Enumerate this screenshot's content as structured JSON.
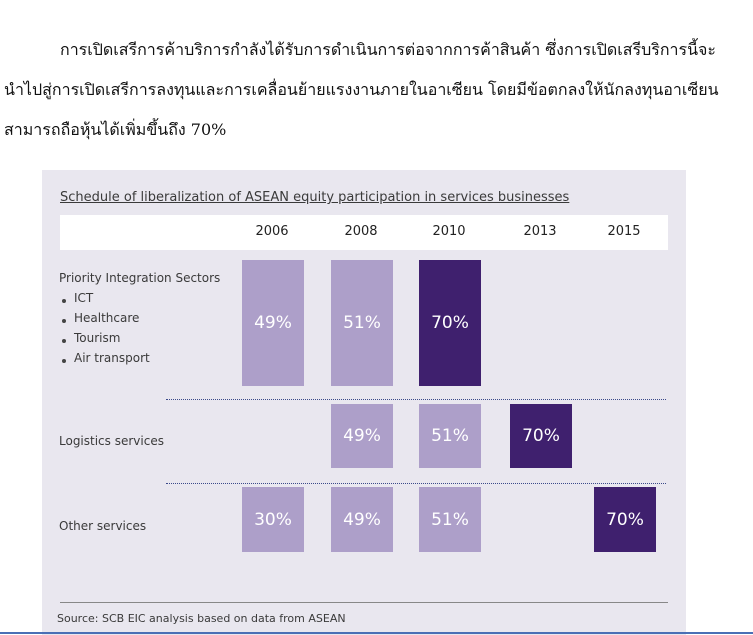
{
  "paragraph": {
    "lines": [
      "การเปิดเสรีการค้าบริการกำลังได้รับการดำเนินการต่อจากการค้าสินค้า ซึ่งการเปิดเสรีบริการนี้จะ",
      "นำไปสู่การเปิดเสรีการลงทุนและการเคลื่อนย้ายแรงงานภายในอาเซียน โดยมีข้อตกลงให้นักลงทุนอาเซียน",
      "สามารถถือหุ้นได้เพิ่มขึ้นถึง 70%"
    ]
  },
  "figure": {
    "title": "Schedule of liberalization of ASEAN equity participation in services businesses",
    "years": [
      "2006",
      "2008",
      "2010",
      "2013",
      "2015"
    ],
    "rows": [
      {
        "label": "Priority Integration Sectors",
        "items": [
          "ICT",
          "Healthcare",
          "Tourism",
          "Air transport"
        ],
        "cells": [
          "49%",
          "51%",
          "70%",
          null,
          null
        ]
      },
      {
        "label": "Logistics services",
        "cells": [
          null,
          "49%",
          "51%",
          "70%",
          null
        ]
      },
      {
        "label": "Other services",
        "cells": [
          "30%",
          "49%",
          "51%",
          null,
          "70%"
        ]
      }
    ],
    "source": "Source:  SCB EIC analysis based on data from ASEAN"
  }
}
